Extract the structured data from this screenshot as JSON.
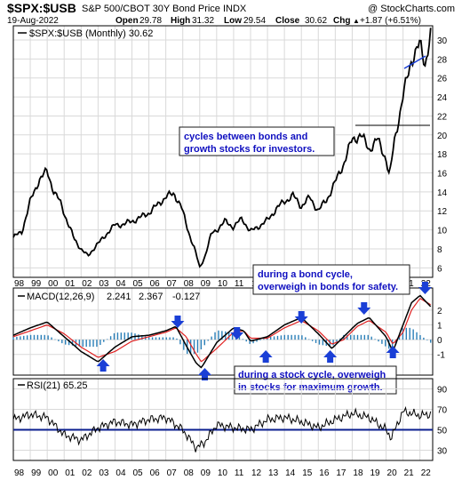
{
  "header": {
    "symbol": "$SPX:$USB",
    "description": "S&P 500/CBOT 30Y Bond Price INDX",
    "watermark": "@ StockCharts.com",
    "date": "19-Aug-2022",
    "open_label": "Open",
    "open": "29.78",
    "high_label": "High",
    "high": "31.32",
    "low_label": "Low",
    "low": "29.54",
    "close_label": "Close",
    "close": "30.62",
    "chg_label": "Chg",
    "chg": "+1.87 (+6.51%)",
    "chg_arrow": "▲"
  },
  "colors": {
    "price_line": "#000000",
    "macd_line": "#000000",
    "signal_line": "#e02020",
    "histogram": "#2a7fb8",
    "annotation_text": "#1010c0",
    "arrow": "#1a3fd6",
    "rsi_line": "#000000",
    "rsi_midline": "#0b1f8f"
  },
  "chart_data": [
    {
      "type": "line",
      "legend": "$SPX:$USB (Monthly) 30.62",
      "x": [
        1998.0,
        1998.5,
        1999.0,
        1999.5,
        2000.0,
        2000.4,
        2000.8,
        2001.2,
        2001.6,
        2002.0,
        2002.4,
        2002.8,
        2003.2,
        2003.6,
        2004.0,
        2004.5,
        2005.0,
        2005.5,
        2006.0,
        2006.5,
        2007.0,
        2007.5,
        2007.9,
        2008.3,
        2008.7,
        2009.0,
        2009.3,
        2009.7,
        2010.0,
        2010.5,
        2011.0,
        2011.5,
        2012.0,
        2012.5,
        2013.0,
        2013.5,
        2014.0,
        2014.5,
        2015.0,
        2015.5,
        2016.0,
        2016.5,
        2017.0,
        2017.5,
        2018.0,
        2018.5,
        2019.0,
        2019.5,
        2020.0,
        2020.2,
        2020.5,
        2021.0,
        2021.5,
        2022.0,
        2022.3,
        2022.63
      ],
      "values": [
        9.2,
        9.8,
        13.0,
        15.2,
        16.2,
        14.0,
        12.8,
        10.8,
        9.0,
        8.0,
        7.2,
        8.2,
        8.9,
        9.8,
        10.5,
        10.6,
        10.9,
        11.3,
        11.8,
        12.6,
        13.5,
        13.8,
        12.5,
        10.0,
        8.0,
        6.0,
        7.2,
        9.6,
        10.0,
        10.9,
        10.3,
        11.2,
        9.8,
        10.4,
        11.0,
        12.2,
        13.0,
        13.6,
        12.5,
        13.4,
        12.0,
        13.2,
        15.0,
        17.0,
        19.5,
        20.0,
        18.5,
        19.5,
        17.5,
        15.5,
        19.5,
        24.0,
        28.0,
        29.5,
        27.5,
        30.62
      ],
      "x_ticks": [
        "98",
        "99",
        "00",
        "01",
        "02",
        "03",
        "04",
        "05",
        "06",
        "07",
        "08",
        "09",
        "10",
        "11",
        "12",
        "13",
        "14",
        "15",
        "16",
        "17",
        "18",
        "19",
        "20",
        "21",
        "22"
      ],
      "y_ticks": [
        "6",
        "8",
        "10",
        "12",
        "14",
        "16",
        "18",
        "20",
        "22",
        "24",
        "26",
        "28",
        "30"
      ],
      "ylim": [
        5,
        31.5
      ],
      "annotations": [
        "cycles between bonds and",
        "growth stocks for investors."
      ]
    },
    {
      "type": "line",
      "legend": "MACD(12,26,9)",
      "legend_macd": "2.241",
      "legend_signal": "2.367",
      "legend_hist": "-0.127",
      "x": [
        1998.0,
        1999.0,
        2000.0,
        2001.0,
        2002.0,
        2003.0,
        2004.0,
        2005.0,
        2006.0,
        2007.0,
        2007.6,
        2008.2,
        2008.8,
        2009.1,
        2010.0,
        2011.0,
        2011.6,
        2012.0,
        2013.0,
        2014.0,
        2015.0,
        2016.0,
        2016.8,
        2017.5,
        2018.3,
        2019.0,
        2020.0,
        2020.4,
        2021.0,
        2021.5,
        2022.0,
        2022.63
      ],
      "macd": [
        0.3,
        0.8,
        1.2,
        0.2,
        -0.8,
        -1.5,
        -0.5,
        0.2,
        0.3,
        0.6,
        0.9,
        -0.4,
        -1.6,
        -1.9,
        -0.2,
        0.8,
        0.6,
        -0.1,
        0.2,
        1.0,
        1.5,
        0.4,
        -0.6,
        0.2,
        1.1,
        1.5,
        0.2,
        -0.8,
        1.0,
        2.5,
        3.0,
        2.24
      ],
      "signal": [
        0.2,
        0.6,
        1.0,
        0.4,
        -0.5,
        -1.2,
        -0.8,
        -0.1,
        0.2,
        0.5,
        0.8,
        0.2,
        -1.0,
        -1.5,
        -0.6,
        0.5,
        0.6,
        0.1,
        0.1,
        0.8,
        1.3,
        0.6,
        -0.3,
        0.0,
        0.9,
        1.3,
        0.5,
        -0.3,
        0.5,
        2.0,
        2.8,
        2.37
      ],
      "y_ticks": [
        "-1",
        "0",
        "1",
        "2"
      ],
      "ylim": [
        -2.4,
        3.5
      ],
      "annotations": [
        "during a bond cycle,",
        "overweigh in bonds for safety.",
        "during a stock cycle, overweigh",
        "in stocks for maximum growth."
      ]
    },
    {
      "type": "line",
      "legend": "RSI(21) 65.25",
      "x": [
        1998.0,
        1999.0,
        2000.0,
        2001.0,
        2002.0,
        2003.0,
        2004.0,
        2005.0,
        2006.0,
        2007.0,
        2008.0,
        2008.8,
        2009.3,
        2010.0,
        2011.0,
        2012.0,
        2013.0,
        2014.0,
        2015.0,
        2016.0,
        2017.0,
        2018.0,
        2019.0,
        2020.0,
        2020.3,
        2021.0,
        2022.0,
        2022.63
      ],
      "values": [
        60,
        65,
        62,
        45,
        40,
        52,
        58,
        55,
        60,
        62,
        50,
        32,
        38,
        55,
        52,
        50,
        60,
        62,
        58,
        52,
        60,
        66,
        62,
        50,
        42,
        68,
        64,
        65.25
      ],
      "y_ticks": [
        "30",
        "50",
        "70",
        "90"
      ],
      "ylim": [
        20,
        100
      ],
      "x_ticks": [
        "98",
        "99",
        "00",
        "01",
        "02",
        "03",
        "04",
        "05",
        "06",
        "07",
        "08",
        "09",
        "10",
        "11",
        "12",
        "13",
        "14",
        "15",
        "16",
        "17",
        "18",
        "19",
        "20",
        "21",
        "22"
      ]
    }
  ]
}
